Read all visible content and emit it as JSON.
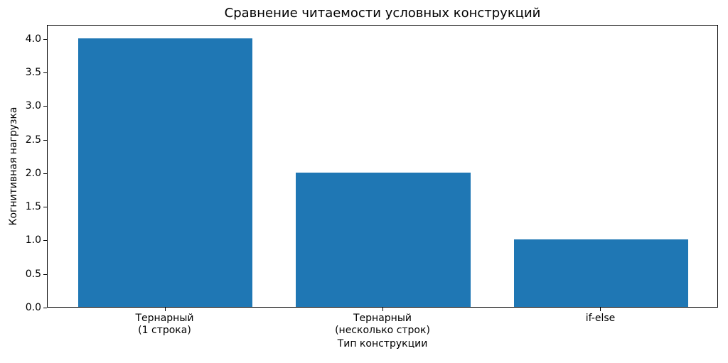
{
  "chart_data": {
    "type": "bar",
    "title": "Сравнение читаемости условных конструкций",
    "xlabel": "Тип конструкции",
    "ylabel": "Когнитивная нагрузка",
    "categories": [
      "Тернарный\n(1 строка)",
      "Тернарный\n(несколько строк)",
      "if-else"
    ],
    "values": [
      4,
      2,
      1
    ],
    "yticks": [
      0.0,
      0.5,
      1.0,
      1.5,
      2.0,
      2.5,
      3.0,
      3.5,
      4.0
    ],
    "ylim": [
      0,
      4.21
    ],
    "xlim": [
      -0.54,
      2.54
    ],
    "bar_width": 0.8,
    "bar_color": "#1f77b4",
    "grid": false,
    "legend_position": "none"
  }
}
